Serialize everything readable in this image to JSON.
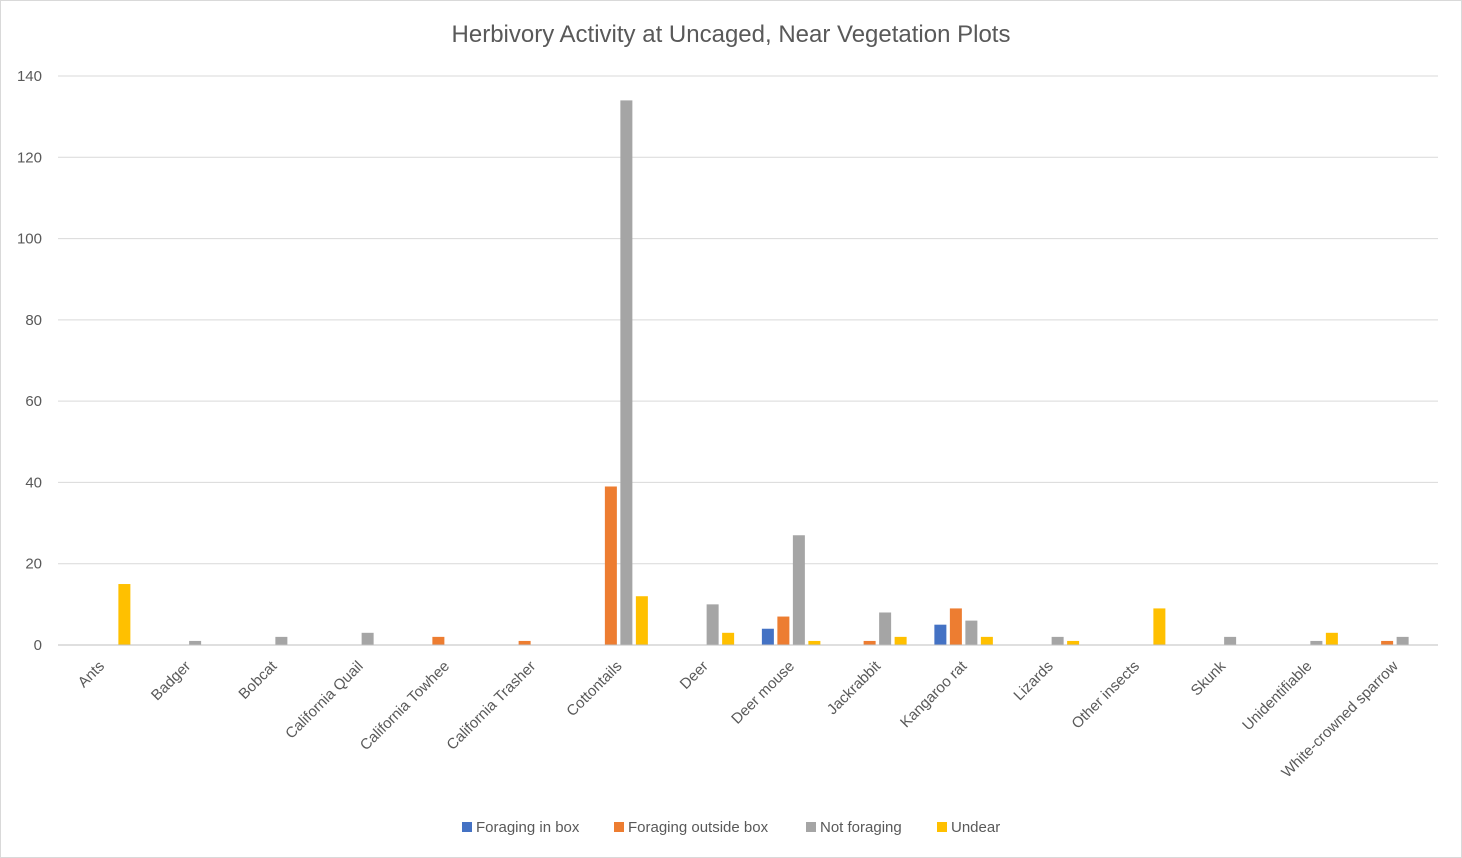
{
  "chart_data": {
    "type": "bar",
    "title": "Herbivory Activity at Uncaged, Near Vegetation Plots",
    "xlabel": "",
    "ylabel": "",
    "ylim": [
      0,
      140
    ],
    "yticks": [
      0,
      20,
      40,
      60,
      80,
      100,
      120,
      140
    ],
    "grid": true,
    "legend_position": "bottom",
    "categories": [
      "Ants",
      "Badger",
      "Bobcat",
      "California Quail",
      "California Towhee",
      "California Trasher",
      "Cottontails",
      "Deer",
      "Deer mouse",
      "Jackrabbit",
      "Kangaroo rat",
      "Lizards",
      "Other insects",
      "Skunk",
      "Unidentifiable",
      "White-crowned sparrow"
    ],
    "series": [
      {
        "name": "Foraging in box",
        "color": "#4472c4",
        "values": [
          0,
          0,
          0,
          0,
          0,
          0,
          0,
          0,
          4,
          0,
          5,
          0,
          0,
          0,
          0,
          0
        ]
      },
      {
        "name": "Foraging outside box",
        "color": "#ed7d31",
        "values": [
          0,
          0,
          0,
          0,
          2,
          1,
          39,
          0,
          7,
          1,
          9,
          0,
          0,
          0,
          0,
          1
        ]
      },
      {
        "name": "Not foraging",
        "color": "#a5a5a5",
        "values": [
          0,
          1,
          2,
          3,
          0,
          0,
          134,
          10,
          27,
          8,
          6,
          2,
          0,
          2,
          1,
          2
        ]
      },
      {
        "name": "Undear",
        "color": "#ffc000",
        "values": [
          15,
          0,
          0,
          0,
          0,
          0,
          12,
          3,
          1,
          2,
          2,
          1,
          9,
          0,
          3,
          0
        ]
      }
    ]
  }
}
